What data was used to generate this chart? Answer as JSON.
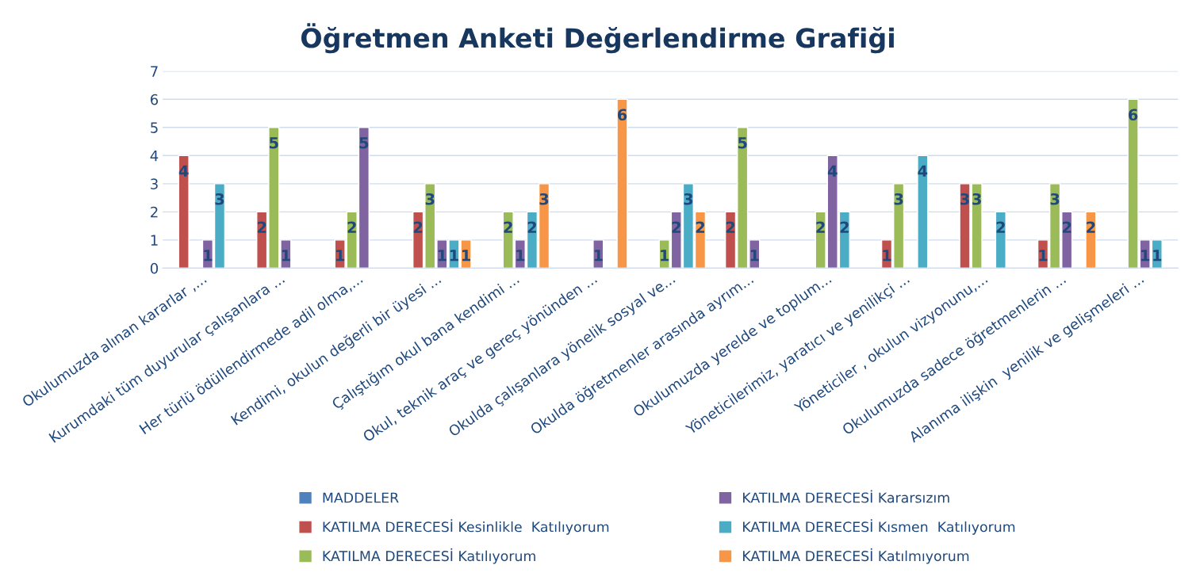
{
  "chart_data": {
    "type": "bar",
    "title": "Öğretmen Anketi Değerlendirme Grafiği",
    "categories": [
      "Okulumuzda alınan kararlar ,...",
      "Kurumdaki tüm duyurular çalışanlara ...",
      "Her türlü ödüllendirmede adil olma,...",
      "Kendimi, okulun değerli bir üyesi ...",
      "Çalıştığım okul bana kendimi ...",
      "Okul, teknik araç ve gereç yönünden ...",
      "Okulda çalışanlara yönelik sosyal ve...",
      "Okulda öğretmenler arasında ayrım...",
      "Okulumuzda yerelde ve toplum...",
      "Yöneticilerimiz, yaratıcı ve yenilikçi ...",
      "Yöneticiler , okulun vizyonunu,...",
      "Okulumuzda sadece öğretmenlerin ...",
      "Alanıma ilişkin  yenilik ve gelişmeleri ..."
    ],
    "series": [
      {
        "name": "MADDELER",
        "color": "#4f81bd",
        "values": [
          null,
          null,
          null,
          null,
          null,
          null,
          null,
          null,
          null,
          null,
          null,
          null,
          null
        ]
      },
      {
        "name": "KATILMA DERECESİ Kesinlikle  Katılıyorum",
        "color": "#c0504d",
        "values": [
          4,
          2,
          1,
          2,
          null,
          null,
          null,
          2,
          null,
          1,
          3,
          1,
          null
        ]
      },
      {
        "name": "KATILMA DERECESİ Katılıyorum",
        "color": "#9bbb59",
        "values": [
          null,
          5,
          2,
          3,
          2,
          null,
          1,
          5,
          2,
          3,
          3,
          3,
          6
        ]
      },
      {
        "name": "KATILMA DERECESİ Kararsızım",
        "color": "#8064a2",
        "values": [
          1,
          1,
          5,
          1,
          1,
          1,
          2,
          1,
          4,
          null,
          null,
          2,
          1
        ]
      },
      {
        "name": "KATILMA DERECESİ Kısmen  Katılıyorum",
        "color": "#4bacc6",
        "values": [
          3,
          null,
          null,
          1,
          2,
          null,
          3,
          null,
          2,
          4,
          2,
          null,
          1
        ]
      },
      {
        "name": "KATILMA DERECESİ Katılmıyorum",
        "color": "#f79646",
        "values": [
          null,
          null,
          null,
          1,
          3,
          6,
          2,
          null,
          null,
          null,
          null,
          2,
          null
        ]
      }
    ],
    "ylim": [
      0,
      7
    ],
    "yticks": [
      0,
      1,
      2,
      3,
      4,
      5,
      6,
      7
    ],
    "grid": "y",
    "legend": "bottom",
    "data_labels": true
  }
}
